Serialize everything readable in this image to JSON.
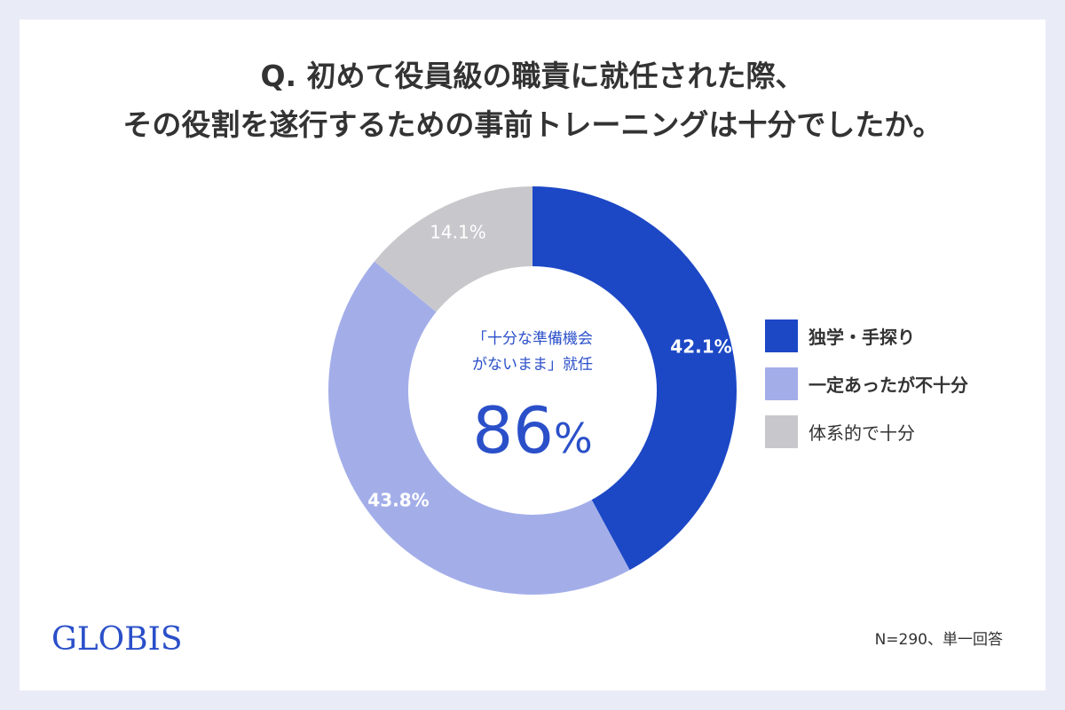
{
  "title": {
    "line1": "Q. 初めて役員級の職責に就任された際、",
    "line2": "その役割を遂行するための事前トレーニングは十分でしたか。"
  },
  "chart_data": {
    "type": "pie",
    "variant": "donut",
    "categories": [
      "独学・手探り",
      "一定あったが不十分",
      "体系的で十分"
    ],
    "values": [
      42.1,
      43.8,
      14.1
    ],
    "value_labels": [
      "42.1%",
      "43.8%",
      "14.1%"
    ],
    "colors": [
      "#1c48c6",
      "#a3aee9",
      "#c8c8cc"
    ],
    "label_colors": [
      "#ffffff",
      "#ffffff",
      "#ffffff"
    ],
    "start": "top",
    "direction": "clockwise",
    "legend_position": "right"
  },
  "center": {
    "line1": "「十分な準備機会",
    "line2": "がないまま」就任",
    "value": "86",
    "unit": "%"
  },
  "legend": [
    {
      "label": "独学・手探り",
      "color": "#1c48c6"
    },
    {
      "label": "一定あったが不十分",
      "color": "#a3aee9"
    },
    {
      "label": "体系的で十分",
      "color": "#c8c8cc"
    }
  ],
  "brand": {
    "logo_text": "GLOBIS"
  },
  "footnote": "N=290、単一回答"
}
